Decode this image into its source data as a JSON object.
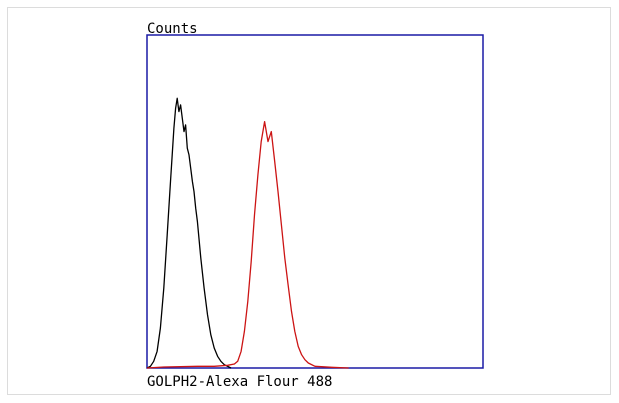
{
  "chart_data": {
    "type": "area",
    "ylabel": "Counts",
    "xlabel": "GOLPH2-Alexa Flour 488",
    "xlim": [
      0,
      100
    ],
    "ylim": [
      0,
      100
    ],
    "grid": false,
    "axis_color": "#1a1aa6",
    "series": [
      {
        "color": "#000000",
        "style": "line",
        "points": [
          [
            0,
            0
          ],
          [
            1,
            0.5
          ],
          [
            2,
            2
          ],
          [
            3,
            5
          ],
          [
            4,
            12
          ],
          [
            5,
            24
          ],
          [
            6,
            40
          ],
          [
            7,
            56
          ],
          [
            7.5,
            64
          ],
          [
            8,
            72
          ],
          [
            8.5,
            78
          ],
          [
            9,
            81
          ],
          [
            9.5,
            77
          ],
          [
            10,
            79
          ],
          [
            10.5,
            75
          ],
          [
            11,
            71
          ],
          [
            11.5,
            73
          ],
          [
            12,
            66
          ],
          [
            12.5,
            64
          ],
          [
            13,
            60
          ],
          [
            13.5,
            56
          ],
          [
            14,
            53
          ],
          [
            14.5,
            48
          ],
          [
            15,
            44
          ],
          [
            16,
            33
          ],
          [
            17,
            24
          ],
          [
            18,
            16
          ],
          [
            19,
            10
          ],
          [
            20,
            6
          ],
          [
            21,
            3.5
          ],
          [
            22,
            2
          ],
          [
            23,
            1
          ],
          [
            24,
            0.5
          ],
          [
            25,
            0
          ]
        ]
      },
      {
        "color": "#cc1414",
        "style": "line",
        "points": [
          [
            0,
            0
          ],
          [
            5,
            0.3
          ],
          [
            15,
            0.5
          ],
          [
            20,
            0.5
          ],
          [
            24,
            0.8
          ],
          [
            26,
            1.2
          ],
          [
            27,
            2
          ],
          [
            28,
            5
          ],
          [
            29,
            11
          ],
          [
            30,
            20
          ],
          [
            31,
            32
          ],
          [
            32,
            46
          ],
          [
            33,
            58
          ],
          [
            34,
            68
          ],
          [
            35,
            74
          ],
          [
            36,
            68
          ],
          [
            37,
            71
          ],
          [
            38,
            62
          ],
          [
            39,
            53
          ],
          [
            40,
            43
          ],
          [
            41,
            33
          ],
          [
            42,
            25
          ],
          [
            43,
            17
          ],
          [
            44,
            11
          ],
          [
            45,
            6.5
          ],
          [
            46,
            4
          ],
          [
            47,
            2.5
          ],
          [
            48,
            1.5
          ],
          [
            50,
            0.5
          ],
          [
            55,
            0.2
          ],
          [
            60,
            0
          ]
        ]
      }
    ]
  }
}
